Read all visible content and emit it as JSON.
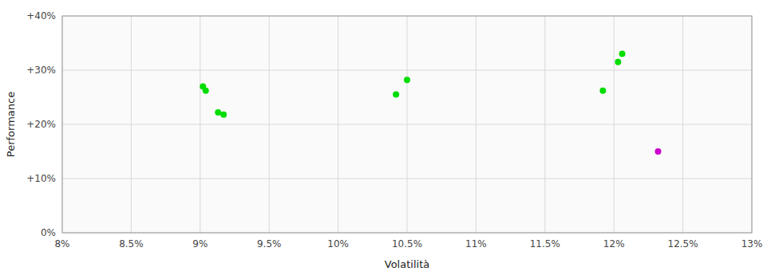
{
  "chart_data": {
    "type": "scatter",
    "xlabel": "Volatilità",
    "ylabel": "Performance",
    "series": [
      {
        "color": "#00dd00",
        "x": [
          9.02,
          9.04,
          9.13,
          9.17,
          10.42,
          10.5,
          11.92,
          12.03,
          12.06
        ],
        "values": [
          27.0,
          26.2,
          22.2,
          21.8,
          25.5,
          28.2,
          26.2,
          31.5,
          33.0
        ]
      },
      {
        "color": "#cc00cc",
        "x": [
          12.32
        ],
        "values": [
          15.0
        ]
      }
    ],
    "xlim": [
      8.0,
      13.0
    ],
    "ylim": [
      0,
      40
    ],
    "xticks": [
      {
        "value": 8.0,
        "label": "8%"
      },
      {
        "value": 8.5,
        "label": "8.5%"
      },
      {
        "value": 9.0,
        "label": "9%"
      },
      {
        "value": 9.5,
        "label": "9.5%"
      },
      {
        "value": 10.0,
        "label": "10%"
      },
      {
        "value": 10.5,
        "label": "10.5%"
      },
      {
        "value": 11.0,
        "label": "11%"
      },
      {
        "value": 11.5,
        "label": "11.5%"
      },
      {
        "value": 12.0,
        "label": "12%"
      },
      {
        "value": 12.5,
        "label": "12.5%"
      },
      {
        "value": 13.0,
        "label": "13%"
      }
    ],
    "yticks": [
      {
        "value": 0,
        "label": "0%"
      },
      {
        "value": 10,
        "label": "+10%"
      },
      {
        "value": 20,
        "label": "+20%"
      },
      {
        "value": 30,
        "label": "+30%"
      },
      {
        "value": 40,
        "label": "+40%"
      }
    ],
    "grid": true
  }
}
